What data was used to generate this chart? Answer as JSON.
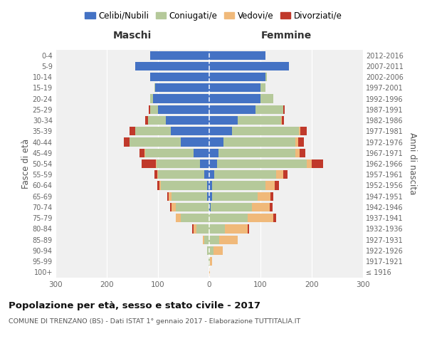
{
  "age_groups": [
    "100+",
    "95-99",
    "90-94",
    "85-89",
    "80-84",
    "75-79",
    "70-74",
    "65-69",
    "60-64",
    "55-59",
    "50-54",
    "45-49",
    "40-44",
    "35-39",
    "30-34",
    "25-29",
    "20-24",
    "15-19",
    "10-14",
    "5-9",
    "0-4"
  ],
  "birth_years": [
    "≤ 1916",
    "1917-1921",
    "1922-1926",
    "1927-1931",
    "1932-1936",
    "1937-1941",
    "1942-1946",
    "1947-1951",
    "1952-1956",
    "1957-1961",
    "1962-1966",
    "1967-1971",
    "1972-1976",
    "1977-1981",
    "1982-1986",
    "1987-1991",
    "1992-1996",
    "1997-2001",
    "2002-2006",
    "2007-2011",
    "2012-2016"
  ],
  "male": {
    "celibe": [
      0,
      0,
      0,
      0,
      0,
      0,
      0,
      4,
      4,
      10,
      18,
      30,
      55,
      75,
      85,
      100,
      110,
      105,
      115,
      145,
      115
    ],
    "coniugato": [
      0,
      1,
      4,
      10,
      25,
      55,
      65,
      70,
      90,
      90,
      85,
      95,
      100,
      70,
      35,
      15,
      5,
      2,
      0,
      0,
      0
    ],
    "vedovo": [
      0,
      0,
      0,
      3,
      5,
      10,
      8,
      5,
      3,
      2,
      1,
      1,
      0,
      0,
      0,
      0,
      0,
      0,
      0,
      0,
      0
    ],
    "divorziato": [
      0,
      0,
      0,
      0,
      3,
      0,
      3,
      3,
      5,
      5,
      28,
      10,
      12,
      10,
      5,
      3,
      0,
      0,
      0,
      0,
      0
    ]
  },
  "female": {
    "nubile": [
      0,
      0,
      0,
      0,
      0,
      0,
      3,
      5,
      5,
      10,
      15,
      18,
      28,
      45,
      55,
      90,
      100,
      100,
      110,
      155,
      110
    ],
    "coniugata": [
      0,
      2,
      8,
      20,
      30,
      75,
      80,
      90,
      105,
      120,
      175,
      150,
      140,
      130,
      85,
      55,
      25,
      10,
      2,
      0,
      0
    ],
    "vedova": [
      1,
      3,
      18,
      35,
      45,
      50,
      35,
      25,
      18,
      15,
      10,
      8,
      5,
      3,
      1,
      0,
      0,
      0,
      0,
      0,
      0
    ],
    "divorziata": [
      0,
      0,
      0,
      0,
      3,
      5,
      5,
      5,
      8,
      8,
      22,
      12,
      12,
      12,
      5,
      2,
      0,
      0,
      0,
      0,
      0
    ]
  },
  "colors": {
    "celibe": "#4472C4",
    "coniugato": "#b5c99a",
    "vedovo": "#f0b97a",
    "divorziato": "#c0392b"
  },
  "xlim": 300,
  "title": "Popolazione per età, sesso e stato civile - 2017",
  "subtitle": "COMUNE DI TRENZANO (BS) - Dati ISTAT 1° gennaio 2017 - Elaborazione TUTTITALIA.IT",
  "ylabel_left": "Fasce di età",
  "ylabel_right": "Anni di nascita",
  "xlabel_left": "Maschi",
  "xlabel_right": "Femmine",
  "bg_color": "#f0f0f0",
  "legend_labels": [
    "Celibi/Nubili",
    "Coniugati/e",
    "Vedovi/e",
    "Divorziati/e"
  ]
}
